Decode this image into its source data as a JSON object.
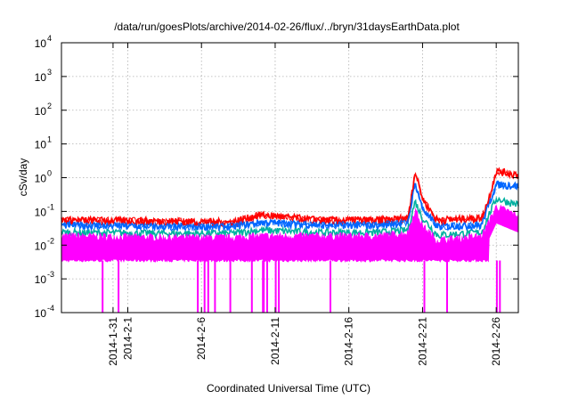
{
  "chart_data": {
    "type": "line",
    "title": "/data/run/goesPlots/archive/2014-02-26/flux/../bryn/31daysEarthData.plot",
    "xlabel": "Coordinated Universal Time (UTC)",
    "ylabel": "cSv/day",
    "yscale": "log",
    "ylim": [
      0.0001,
      10000
    ],
    "xlim": [
      "2014-01-27T12:00",
      "2014-02-27T12:00"
    ],
    "grid": true,
    "legend": "none",
    "y_ticks": [
      {
        "base": "10",
        "exp": "-4",
        "value": 0.0001
      },
      {
        "base": "10",
        "exp": "-3",
        "value": 0.001
      },
      {
        "base": "10",
        "exp": "-2",
        "value": 0.01
      },
      {
        "base": "10",
        "exp": "-1",
        "value": 0.1
      },
      {
        "base": "10",
        "exp": "0",
        "value": 1
      },
      {
        "base": "10",
        "exp": "1",
        "value": 10
      },
      {
        "base": "10",
        "exp": "2",
        "value": 100
      },
      {
        "base": "10",
        "exp": "3",
        "value": 1000
      },
      {
        "base": "10",
        "exp": "4",
        "value": 10000
      }
    ],
    "x_ticks": [
      {
        "label": "2014-1-31",
        "date": "2014-01-31"
      },
      {
        "label": "2014-2-1",
        "date": "2014-02-01"
      },
      {
        "label": "2014-2-6",
        "date": "2014-02-06"
      },
      {
        "label": "2014-2-11",
        "date": "2014-02-11"
      },
      {
        "label": "2014-2-16",
        "date": "2014-02-16"
      },
      {
        "label": "2014-2-21",
        "date": "2014-02-21"
      },
      {
        "label": "2014-2-26",
        "date": "2014-02-26"
      }
    ],
    "series_colors": [
      "#ff0000",
      "#0066ff",
      "#00b0a0",
      "#ff00ff"
    ],
    "envelope_dates": [
      "2014-01-28",
      "2014-02-04",
      "2014-02-08",
      "2014-02-10",
      "2014-02-14",
      "2014-02-18",
      "2014-02-20",
      "2014-02-20T12:00",
      "2014-02-21",
      "2014-02-22",
      "2014-02-25",
      "2014-02-25T12:00",
      "2014-02-26",
      "2014-02-27T12:00"
    ],
    "series": [
      {
        "color": "#ff0000",
        "values": [
          0.07,
          0.065,
          0.06,
          0.1,
          0.07,
          0.07,
          0.08,
          1.9,
          0.3,
          0.07,
          0.08,
          0.3,
          2.0,
          1.5
        ]
      },
      {
        "color": "#0066ff",
        "values": [
          0.05,
          0.045,
          0.045,
          0.06,
          0.05,
          0.05,
          0.06,
          0.9,
          0.15,
          0.045,
          0.05,
          0.2,
          0.8,
          0.7
        ]
      },
      {
        "color": "#00b0a0",
        "values": [
          0.03,
          0.028,
          0.028,
          0.035,
          0.03,
          0.03,
          0.035,
          0.25,
          0.08,
          0.025,
          0.03,
          0.1,
          0.3,
          0.2
        ]
      },
      {
        "color": "#ff00ff",
        "values": [
          0.02,
          0.018,
          0.018,
          0.02,
          0.02,
          0.02,
          0.025,
          0.12,
          0.04,
          0.015,
          0.02,
          0.05,
          0.15,
          0.08
        ]
      }
    ],
    "magenta_floor": 0.0035,
    "dropouts": [
      "2014-01-30T07:00",
      "2014-01-31T09:00",
      "2014-02-05T18:00",
      "2014-02-06T05:00",
      "2014-02-06T11:00",
      "2014-02-06T22:00",
      "2014-02-07T23:00",
      "2014-02-09T10:00",
      "2014-02-10T04:00",
      "2014-02-10T05:30",
      "2014-02-10T11:00",
      "2014-02-11T01:00",
      "2014-02-11T06:00",
      "2014-02-14T18:00",
      "2014-02-21T03:00",
      "2014-02-22T16:00",
      "2014-02-26T01:00",
      "2014-02-26T06:00"
    ]
  }
}
